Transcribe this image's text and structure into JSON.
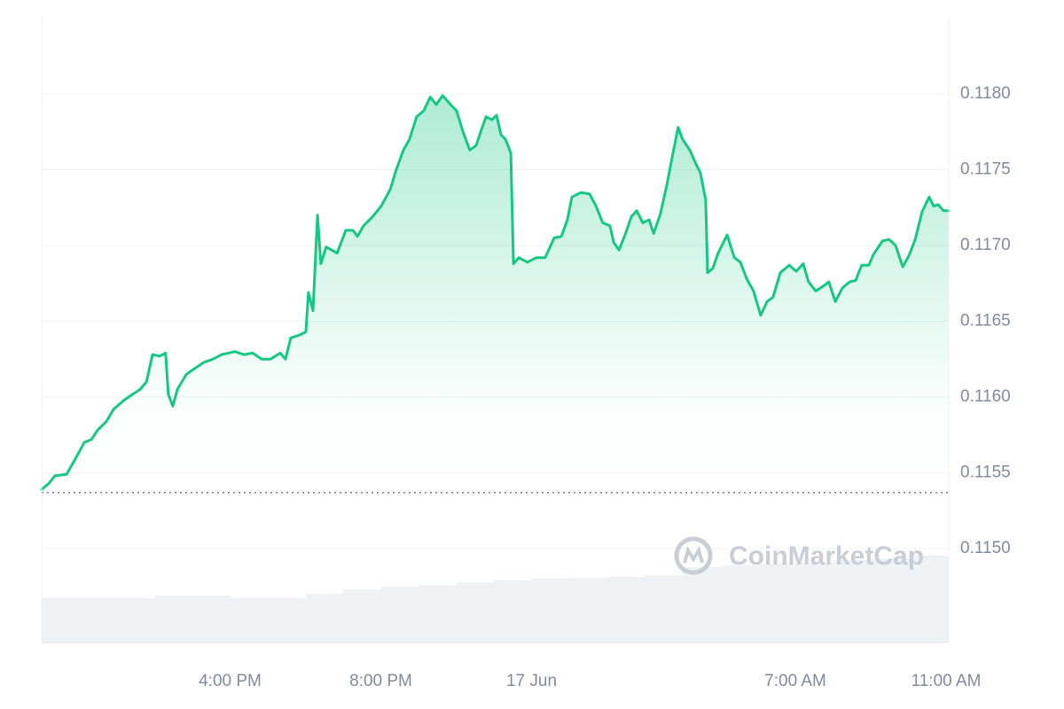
{
  "chart_data": {
    "type": "line",
    "color": "#16c784",
    "watermark": "CoinMarketCap",
    "reference": 0.11537,
    "x": [
      11.0,
      11.19,
      11.35,
      11.66,
      11.89,
      12.13,
      12.32,
      12.48,
      12.72,
      12.91,
      13.19,
      13.42,
      13.61,
      13.78,
      13.94,
      14.13,
      14.29,
      14.36,
      14.48,
      14.6,
      14.84,
      15.07,
      15.31,
      15.54,
      15.78,
      16.13,
      16.36,
      16.6,
      16.84,
      17.07,
      17.33,
      17.47,
      17.61,
      17.85,
      18.01,
      18.08,
      18.2,
      18.32,
      18.41,
      18.55,
      18.84,
      19.07,
      19.26,
      19.38,
      19.54,
      19.78,
      20.01,
      20.25,
      20.41,
      20.6,
      20.76,
      20.95,
      21.14,
      21.31,
      21.47,
      21.64,
      21.85,
      22.01,
      22.18,
      22.36,
      22.53,
      22.65,
      22.79,
      22.95,
      23.07,
      23.19,
      23.31,
      23.45,
      23.52,
      23.66,
      23.89,
      24.13,
      24.36,
      24.6,
      24.79,
      24.95,
      25.07,
      25.31,
      25.54,
      25.71,
      25.89,
      26.08,
      26.18,
      26.32,
      26.48,
      26.65,
      26.79,
      26.95,
      27.12,
      27.24,
      27.42,
      27.59,
      27.73,
      27.89,
      28.01,
      28.2,
      28.36,
      28.48,
      28.62,
      28.67,
      28.81,
      28.95,
      29.19,
      29.38,
      29.54,
      29.71,
      29.89,
      30.08,
      30.25,
      30.41,
      30.6,
      30.84,
      31.02,
      31.21,
      31.35,
      31.54,
      31.73,
      31.89,
      32.06,
      32.25,
      32.44,
      32.6,
      32.76,
      32.95,
      33.07,
      33.31,
      33.49,
      33.66,
      33.85,
      34.01,
      34.18,
      34.36,
      34.55,
      34.67,
      34.79,
      34.93,
      35.07
    ],
    "values": [
      0.11539,
      0.11543,
      0.11548,
      0.11549,
      0.11559,
      0.1157,
      0.11572,
      0.11578,
      0.11584,
      0.11592,
      0.11598,
      0.11602,
      0.11605,
      0.1161,
      0.11628,
      0.11627,
      0.11629,
      0.11602,
      0.11594,
      0.11605,
      0.11615,
      0.11619,
      0.11623,
      0.11625,
      0.11628,
      0.1163,
      0.11628,
      0.11629,
      0.11625,
      0.11625,
      0.11629,
      0.11625,
      0.11639,
      0.11641,
      0.11643,
      0.11669,
      0.11657,
      0.1172,
      0.11688,
      0.11699,
      0.11695,
      0.1171,
      0.1171,
      0.11706,
      0.11713,
      0.11719,
      0.11726,
      0.11737,
      0.1175,
      0.11763,
      0.1177,
      0.11785,
      0.11789,
      0.11798,
      0.11793,
      0.11799,
      0.11793,
      0.11789,
      0.11775,
      0.11763,
      0.11766,
      0.11775,
      0.11785,
      0.11783,
      0.11786,
      0.11773,
      0.1177,
      0.11761,
      0.11688,
      0.11692,
      0.11689,
      0.11692,
      0.11692,
      0.11705,
      0.11706,
      0.11717,
      0.11732,
      0.11735,
      0.11734,
      0.11726,
      0.11715,
      0.11713,
      0.11702,
      0.11697,
      0.11707,
      0.11719,
      0.11723,
      0.11715,
      0.11717,
      0.11708,
      0.11721,
      0.1174,
      0.11758,
      0.11778,
      0.1177,
      0.11763,
      0.11754,
      0.11748,
      0.1173,
      0.11682,
      0.11685,
      0.11695,
      0.11707,
      0.11692,
      0.11689,
      0.11678,
      0.1167,
      0.11654,
      0.11663,
      0.11666,
      0.11682,
      0.11687,
      0.11683,
      0.11688,
      0.11676,
      0.1167,
      0.11673,
      0.11676,
      0.11663,
      0.11672,
      0.11676,
      0.11677,
      0.11687,
      0.11687,
      0.11694,
      0.11703,
      0.11704,
      0.117,
      0.11686,
      0.11693,
      0.11704,
      0.11722,
      0.11732,
      0.11726,
      0.11727,
      0.11723,
      0.11723
    ],
    "volume": {
      "color": "#eff2f5",
      "x": [
        11,
        12,
        13,
        14,
        15,
        16,
        17,
        18,
        19,
        20,
        21,
        22,
        23,
        24,
        25,
        26,
        27,
        28,
        29,
        30,
        31,
        32,
        33,
        34
      ],
      "values": [
        50,
        50,
        50,
        53,
        53,
        50,
        50,
        55,
        60,
        63,
        65,
        68,
        70,
        72,
        73,
        74,
        76,
        85,
        87,
        89,
        90,
        93,
        95,
        98
      ]
    },
    "xlim": [
      11,
      35.07
    ],
    "xticks": [
      {
        "value": 16,
        "label": "4:00 PM"
      },
      {
        "value": 20,
        "label": "8:00 PM"
      },
      {
        "value": 24,
        "label": "17 Jun"
      },
      {
        "value": 31,
        "label": "7:00 AM"
      },
      {
        "value": 35,
        "label": "11:00 AM"
      }
    ],
    "ylim": [
      0.11438,
      0.118515
    ],
    "yticks": [
      {
        "value": 0.115,
        "label": "0.1150"
      },
      0.1155,
      {
        "value": 0.116,
        "label": "0.1160"
      },
      0.1165,
      {
        "value": 0.117,
        "label": "0.1170"
      },
      0.1175,
      {
        "value": 0.118,
        "label": "0.1180"
      }
    ],
    "grid": true
  }
}
